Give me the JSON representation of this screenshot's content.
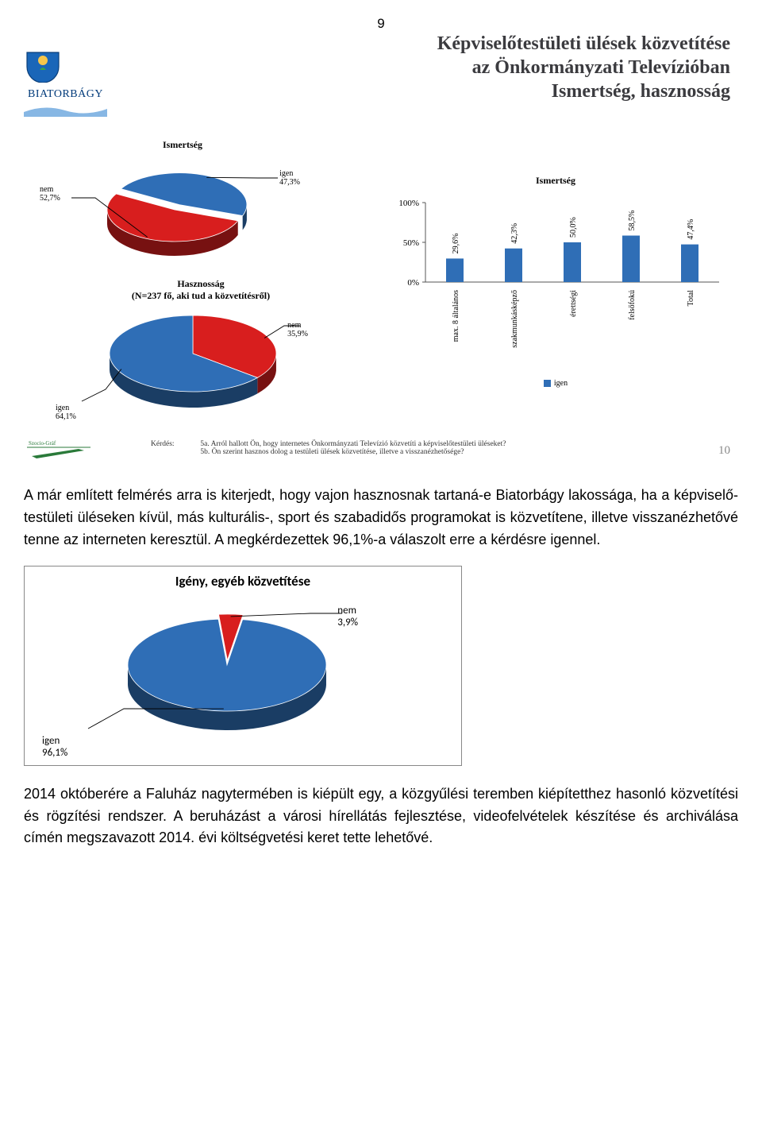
{
  "page_number": "9",
  "slide": {
    "title_line1": "Képviselőtestületi ülések közvetítése",
    "title_line2": "az Önkormányzati Televízióban",
    "title_line3": "Ismertség, hasznosság",
    "logo_text": "BIATORBÁGY",
    "pie1": {
      "title": "Ismertség",
      "igen_label": "igen",
      "igen_value": "47,3%",
      "igen_pct": 47.3,
      "nem_label": "nem",
      "nem_value": "52,7%",
      "nem_pct": 52.7,
      "colors": {
        "igen": "#2f6eb6",
        "nem": "#d81e1e"
      }
    },
    "pie2": {
      "title": "Hasznosság",
      "subtitle": "(N=237 fő, aki tud a közvetítésről)",
      "igen_label": "igen",
      "igen_value": "64,1%",
      "igen_pct": 64.1,
      "nem_label": "nem",
      "nem_value": "35,9%",
      "nem_pct": 35.9,
      "colors": {
        "igen": "#2f6eb6",
        "nem": "#d81e1e"
      }
    },
    "bar": {
      "title": "Ismertség",
      "yticks": [
        "0%",
        "50%",
        "100%"
      ],
      "categories": [
        "max. 8 általános",
        "szakmunkásképző",
        "érettségi",
        "felsőfokú",
        "Total"
      ],
      "values": [
        29.6,
        42.3,
        50.0,
        58.5,
        47.4
      ],
      "value_labels": [
        "29,6%",
        "42,3%",
        "50,0%",
        "58,5%",
        "47,4%"
      ],
      "color": "#2f6eb6",
      "legend_label": "igen"
    },
    "question_label": "Kérdés:",
    "question_a": "5a. Arról hallott Ön, hogy internetes Önkormányzati Televízió  közvetíti a képviselőtestületi üléseket?",
    "question_b": "5b. Ön szerint hasznos dolog a testületi ülések közvetítése, illetve a visszanézhetősége?",
    "slide_number": "10",
    "pen_logo_text": "Szocio-Gráf"
  },
  "paragraph1": "A már említett felmérés arra is kiterjedt, hogy vajon hasznosnak tartaná-e Biatorbágy lakossága, ha a képviselő-testületi üléseken kívül, más kulturális-, sport és szabadidős programokat is közvetítene, illetve visszanézhetővé tenne az interneten keresztül. A megkérdezettek 96,1%-a válaszolt erre a kérdésre igennel.",
  "pie3": {
    "title": "Igény, egyéb közvetítése",
    "igen_label": "igen",
    "igen_value": "96,1%",
    "igen_pct": 96.1,
    "nem_label": "nem",
    "nem_value": "3,9%",
    "nem_pct": 3.9,
    "colors": {
      "igen": "#2f6eb6",
      "nem": "#d81e1e"
    }
  },
  "paragraph2": "2014 októberére a Faluház nagytermében is kiépült egy, a közgyűlési teremben kiépítetthez hasonló közvetítési és rögzítési rendszer. A beruházást a városi hírellátás fejlesztése, videofelvételek készítése és archiválása címén megszavazott 2014. évi költségvetési keret tette lehetővé."
}
